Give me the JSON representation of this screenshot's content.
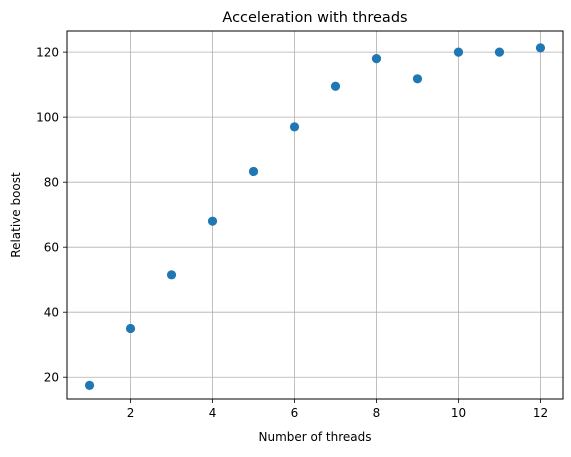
{
  "chart_data": {
    "type": "scatter",
    "title": "Acceleration with threads",
    "xlabel": "Number of threads",
    "ylabel": "Relative boost",
    "x": [
      1,
      2,
      3,
      4,
      5,
      6,
      7,
      8,
      9,
      10,
      11,
      12
    ],
    "y": [
      17.5,
      35.0,
      51.5,
      68.0,
      83.3,
      97.0,
      109.5,
      118.0,
      111.8,
      120.0,
      120.0,
      121.3
    ],
    "xlim": [
      0.45,
      12.55
    ],
    "ylim": [
      13.3,
      126.5
    ],
    "xticks": [
      2,
      4,
      6,
      8,
      10,
      12
    ],
    "yticks": [
      20,
      40,
      60,
      80,
      100,
      120
    ],
    "grid": true,
    "marker_color": "#1f77b4",
    "grid_color": "#b0b0b0"
  }
}
